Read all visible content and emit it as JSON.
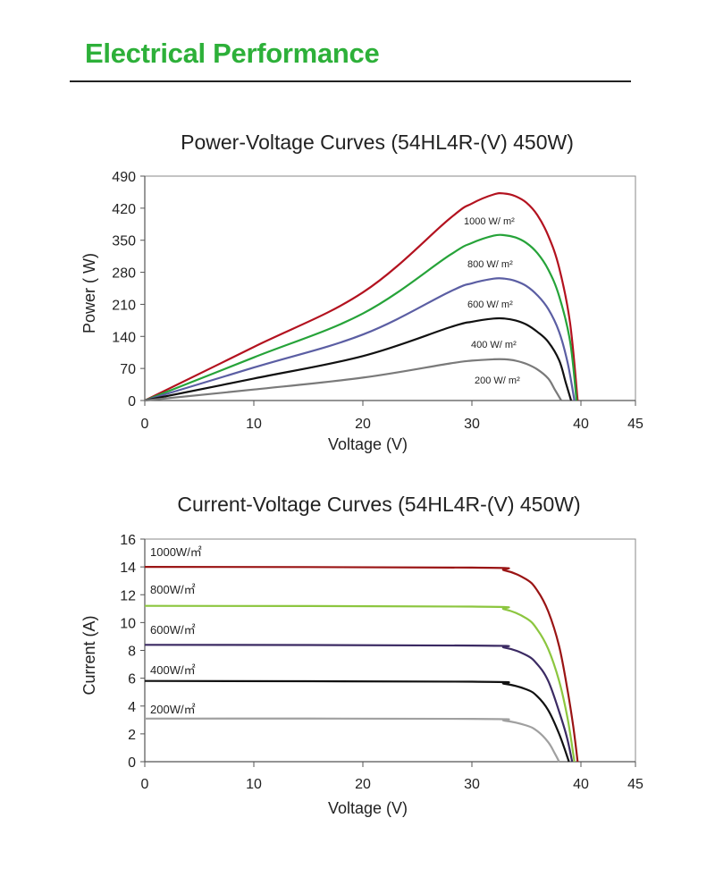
{
  "header": {
    "title": "Electrical Performance"
  },
  "chart_data": [
    {
      "type": "line",
      "title": "Power-Voltage Curves (54HL4R-(V) 450W)",
      "xlabel": "Voltage (V)",
      "ylabel": "Power ( W)",
      "xlim": [
        0,
        45
      ],
      "ylim": [
        0,
        490
      ],
      "x_ticks": [
        "0",
        "10",
        "20",
        "30",
        "40",
        "45"
      ],
      "y_ticks": [
        "0",
        "70",
        "140",
        "210",
        "280",
        "350",
        "420",
        "490"
      ],
      "grid": false,
      "series": [
        {
          "name": "1000 W/ m²",
          "color": "#b3121f",
          "points": [
            [
              0,
              0
            ],
            [
              10,
              117
            ],
            [
              20,
              236
            ],
            [
              28,
              398
            ],
            [
              30,
              430
            ],
            [
              32,
              450
            ],
            [
              33,
              452
            ],
            [
              34,
              446
            ],
            [
              35,
              432
            ],
            [
              36,
              405
            ],
            [
              37,
              360
            ],
            [
              38,
              290
            ],
            [
              39,
              170
            ],
            [
              39.7,
              0
            ]
          ]
        },
        {
          "name": "800 W/ m²",
          "color": "#26a339",
          "points": [
            [
              0,
              0
            ],
            [
              10,
              94
            ],
            [
              20,
              190
            ],
            [
              28,
              318
            ],
            [
              30,
              344
            ],
            [
              32,
              360
            ],
            [
              33,
              361
            ],
            [
              34,
              356
            ],
            [
              35,
              344
            ],
            [
              36,
              322
            ],
            [
              37,
              286
            ],
            [
              38,
              228
            ],
            [
              39,
              130
            ],
            [
              39.6,
              0
            ]
          ]
        },
        {
          "name": "600 W/ m²",
          "color": "#5b5ea3",
          "points": [
            [
              0,
              0
            ],
            [
              10,
              72
            ],
            [
              20,
              144
            ],
            [
              28,
              238
            ],
            [
              30,
              256
            ],
            [
              32,
              266
            ],
            [
              33,
              266
            ],
            [
              34,
              261
            ],
            [
              35,
              250
            ],
            [
              36,
              230
            ],
            [
              37,
              200
            ],
            [
              38,
              150
            ],
            [
              38.8,
              80
            ],
            [
              39.4,
              0
            ]
          ]
        },
        {
          "name": "400 W/ m²",
          "color": "#111111",
          "points": [
            [
              0,
              0
            ],
            [
              10,
              48
            ],
            [
              20,
              97
            ],
            [
              28,
              160
            ],
            [
              30,
              172
            ],
            [
              32,
              179
            ],
            [
              33,
              179
            ],
            [
              34,
              175
            ],
            [
              35,
              166
            ],
            [
              36,
              150
            ],
            [
              37,
              128
            ],
            [
              38,
              88
            ],
            [
              38.6,
              40
            ],
            [
              39.1,
              0
            ]
          ]
        },
        {
          "name": "200 W/ m²",
          "color": "#7a7a7a",
          "points": [
            [
              0,
              0
            ],
            [
              10,
              24
            ],
            [
              20,
              50
            ],
            [
              28,
              81
            ],
            [
              30,
              87
            ],
            [
              32,
              90
            ],
            [
              33,
              90
            ],
            [
              34,
              87
            ],
            [
              35,
              80
            ],
            [
              36,
              68
            ],
            [
              37,
              48
            ],
            [
              37.6,
              24
            ],
            [
              38.2,
              0
            ]
          ]
        }
      ]
    },
    {
      "type": "line",
      "title": "Current-Voltage Curves (54HL4R-(V) 450W)",
      "xlabel": "Voltage (V)",
      "ylabel": "Current (A)",
      "xlim": [
        0,
        45
      ],
      "ylim": [
        0,
        16
      ],
      "x_ticks": [
        "0",
        "10",
        "20",
        "30",
        "40",
        "45"
      ],
      "y_ticks": [
        "0",
        "2",
        "4",
        "6",
        "8",
        "10",
        "12",
        "14",
        "16"
      ],
      "grid": false,
      "series": [
        {
          "name": "1000W/㎡",
          "color": "#9a1414",
          "points": [
            [
              0,
              14
            ],
            [
              30,
              13.95
            ],
            [
              33,
              13.75
            ],
            [
              35,
              13.1
            ],
            [
              36,
              12.3
            ],
            [
              37,
              10.8
            ],
            [
              38,
              8.3
            ],
            [
              38.8,
              5
            ],
            [
              39.3,
              2.5
            ],
            [
              39.7,
              0
            ]
          ]
        },
        {
          "name": "800W/㎡",
          "color": "#8cc63f",
          "points": [
            [
              0,
              11.2
            ],
            [
              30,
              11.15
            ],
            [
              33,
              10.95
            ],
            [
              35,
              10.3
            ],
            [
              36,
              9.5
            ],
            [
              37,
              8.1
            ],
            [
              38,
              5.8
            ],
            [
              38.8,
              3
            ],
            [
              39.4,
              0
            ]
          ]
        },
        {
          "name": "600W/㎡",
          "color": "#3b2a63",
          "points": [
            [
              0,
              8.4
            ],
            [
              30,
              8.35
            ],
            [
              33,
              8.2
            ],
            [
              35,
              7.65
            ],
            [
              36,
              7.0
            ],
            [
              37,
              5.8
            ],
            [
              38,
              3.6
            ],
            [
              38.7,
              1.8
            ],
            [
              39.2,
              0
            ]
          ]
        },
        {
          "name": "400W/㎡",
          "color": "#111111",
          "points": [
            [
              0,
              5.8
            ],
            [
              30,
              5.75
            ],
            [
              33,
              5.6
            ],
            [
              35,
              5.2
            ],
            [
              36,
              4.7
            ],
            [
              37,
              3.7
            ],
            [
              38,
              2.0
            ],
            [
              38.9,
              0
            ]
          ]
        },
        {
          "name": "200W/㎡",
          "color": "#a0a0a0",
          "points": [
            [
              0,
              3.1
            ],
            [
              30,
              3.08
            ],
            [
              33,
              2.95
            ],
            [
              35,
              2.6
            ],
            [
              36,
              2.2
            ],
            [
              37,
              1.4
            ],
            [
              37.6,
              0.6
            ],
            [
              38,
              0
            ]
          ]
        }
      ]
    }
  ]
}
